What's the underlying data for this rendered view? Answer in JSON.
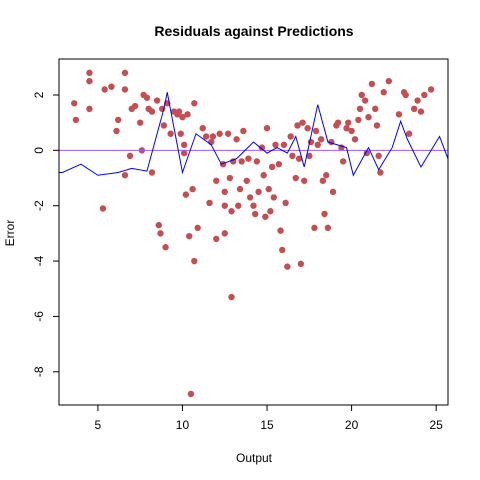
{
  "chart_data": {
    "type": "scatter",
    "title": "Residuals against Predictions",
    "xlabel": "Output",
    "ylabel": "Error",
    "xlim": [
      2.7,
      25.7
    ],
    "ylim": [
      -9.2,
      3.3
    ],
    "xticks": [
      5,
      10,
      15,
      20,
      25
    ],
    "yticks": [
      -8,
      -6,
      -4,
      -2,
      0,
      2
    ],
    "grid": false,
    "legend": "none",
    "colors": {
      "points": "#c44e52",
      "line": "#0000ff",
      "reference": "#9b59ff",
      "axes": "#000000"
    },
    "reference_line": {
      "y": 0
    },
    "series": [
      {
        "type": "scatter",
        "points": [
          [
            3.6,
            1.7
          ],
          [
            3.7,
            1.1
          ],
          [
            4.5,
            2.8
          ],
          [
            4.5,
            2.5
          ],
          [
            4.5,
            1.5
          ],
          [
            5.3,
            -2.1
          ],
          [
            5.4,
            2.2
          ],
          [
            5.8,
            2.3
          ],
          [
            6.1,
            0.7
          ],
          [
            6.2,
            1.1
          ],
          [
            6.6,
            2.8
          ],
          [
            6.6,
            2.2
          ],
          [
            6.6,
            -0.9
          ],
          [
            6.9,
            -0.2
          ],
          [
            7.0,
            1.5
          ],
          [
            7.2,
            1.6
          ],
          [
            7.5,
            1.0
          ],
          [
            7.6,
            0.0
          ],
          [
            7.7,
            2.0
          ],
          [
            7.9,
            1.9
          ],
          [
            8.0,
            1.5
          ],
          [
            8.2,
            1.4
          ],
          [
            8.2,
            -0.8
          ],
          [
            8.5,
            1.8
          ],
          [
            8.6,
            -2.7
          ],
          [
            8.7,
            -3.0
          ],
          [
            8.8,
            1.5
          ],
          [
            8.9,
            0.9
          ],
          [
            9.0,
            -3.5
          ],
          [
            9.1,
            1.7
          ],
          [
            9.3,
            0.6
          ],
          [
            9.5,
            1.4
          ],
          [
            9.7,
            1.3
          ],
          [
            9.8,
            1.4
          ],
          [
            9.9,
            0.6
          ],
          [
            10.0,
            1.2
          ],
          [
            10.1,
            0.2
          ],
          [
            10.1,
            -0.1
          ],
          [
            10.2,
            -1.6
          ],
          [
            10.3,
            1.3
          ],
          [
            10.4,
            -3.1
          ],
          [
            10.5,
            -8.8
          ],
          [
            10.6,
            -1.4
          ],
          [
            10.7,
            -4.0
          ],
          [
            10.7,
            1.7
          ],
          [
            10.9,
            -2.8
          ],
          [
            11.2,
            0.8
          ],
          [
            11.4,
            0.5
          ],
          [
            11.6,
            -1.9
          ],
          [
            11.7,
            0.3
          ],
          [
            11.8,
            0.5
          ],
          [
            12.0,
            -1.1
          ],
          [
            12.0,
            -3.2
          ],
          [
            12.2,
            0.6
          ],
          [
            12.4,
            -0.5
          ],
          [
            12.5,
            -1.5
          ],
          [
            12.5,
            -2.0
          ],
          [
            12.5,
            -3.0
          ],
          [
            12.7,
            0.6
          ],
          [
            12.8,
            -1.0
          ],
          [
            12.9,
            -2.2
          ],
          [
            12.9,
            -5.3
          ],
          [
            13.0,
            -0.4
          ],
          [
            13.2,
            0.4
          ],
          [
            13.3,
            -2.0
          ],
          [
            13.4,
            -1.4
          ],
          [
            13.5,
            -0.4
          ],
          [
            13.6,
            0.7
          ],
          [
            13.8,
            -1.1
          ],
          [
            13.9,
            -0.3
          ],
          [
            14.0,
            -1.7
          ],
          [
            14.2,
            -2.0
          ],
          [
            14.3,
            -2.3
          ],
          [
            14.4,
            -0.4
          ],
          [
            14.5,
            -1.5
          ],
          [
            14.7,
            0.1
          ],
          [
            14.8,
            -0.9
          ],
          [
            14.9,
            -2.4
          ],
          [
            15.0,
            0.8
          ],
          [
            15.1,
            -1.4
          ],
          [
            15.2,
            -2.2
          ],
          [
            15.3,
            -0.6
          ],
          [
            15.4,
            -1.7
          ],
          [
            15.5,
            0.2
          ],
          [
            15.7,
            -0.5
          ],
          [
            15.8,
            -2.9
          ],
          [
            15.9,
            -3.6
          ],
          [
            16.0,
            0.2
          ],
          [
            16.1,
            -1.9
          ],
          [
            16.2,
            -4.2
          ],
          [
            16.4,
            0.5
          ],
          [
            16.5,
            -0.2
          ],
          [
            16.7,
            -1.0
          ],
          [
            16.8,
            0.9
          ],
          [
            16.9,
            -0.3
          ],
          [
            17.0,
            -4.1
          ],
          [
            17.1,
            1.0
          ],
          [
            17.2,
            -1.1
          ],
          [
            17.4,
            0.8
          ],
          [
            17.5,
            -0.2
          ],
          [
            17.6,
            0.3
          ],
          [
            17.8,
            -2.8
          ],
          [
            17.9,
            0.7
          ],
          [
            18.0,
            0.2
          ],
          [
            18.2,
            0.4
          ],
          [
            18.3,
            -1.1
          ],
          [
            18.4,
            -2.3
          ],
          [
            18.5,
            -0.9
          ],
          [
            18.6,
            -2.8
          ],
          [
            18.8,
            0.3
          ],
          [
            18.9,
            -1.5
          ],
          [
            19.1,
            0.9
          ],
          [
            19.2,
            1.0
          ],
          [
            19.4,
            0.1
          ],
          [
            19.5,
            -0.4
          ],
          [
            19.7,
            0.8
          ],
          [
            19.8,
            1.0
          ],
          [
            20.0,
            0.7
          ],
          [
            20.2,
            0.4
          ],
          [
            20.4,
            1.1
          ],
          [
            20.5,
            1.5
          ],
          [
            20.6,
            2.0
          ],
          [
            20.8,
            1.8
          ],
          [
            20.9,
            -0.1
          ],
          [
            21.0,
            1.2
          ],
          [
            21.2,
            2.4
          ],
          [
            21.4,
            1.5
          ],
          [
            21.5,
            0.9
          ],
          [
            21.6,
            -0.2
          ],
          [
            21.7,
            -0.8
          ],
          [
            21.9,
            2.1
          ],
          [
            22.2,
            2.5
          ],
          [
            22.8,
            1.3
          ],
          [
            23.1,
            2.1
          ],
          [
            23.2,
            2.0
          ],
          [
            23.4,
            0.6
          ],
          [
            23.7,
            1.5
          ],
          [
            23.9,
            1.8
          ],
          [
            24.1,
            1.4
          ],
          [
            24.3,
            2.0
          ],
          [
            24.7,
            2.2
          ]
        ]
      },
      {
        "type": "line",
        "points": [
          [
            2.7,
            -0.8
          ],
          [
            2.9,
            -0.8
          ],
          [
            4.0,
            -0.5
          ],
          [
            5.0,
            -0.9
          ],
          [
            6.2,
            -0.8
          ],
          [
            7.0,
            -0.65
          ],
          [
            7.9,
            -0.75
          ],
          [
            8.9,
            1.5
          ],
          [
            9.1,
            2.1
          ],
          [
            10.0,
            -0.8
          ],
          [
            10.8,
            0.6
          ],
          [
            11.7,
            0.2
          ],
          [
            12.3,
            -0.5
          ],
          [
            13.2,
            -0.3
          ],
          [
            14.2,
            0.3
          ],
          [
            15.0,
            -0.1
          ],
          [
            15.6,
            0.1
          ],
          [
            16.2,
            -0.1
          ],
          [
            16.7,
            0.5
          ],
          [
            17.2,
            -0.6
          ],
          [
            18.0,
            1.65
          ],
          [
            18.6,
            0.3
          ],
          [
            19.7,
            0.1
          ],
          [
            20.1,
            -0.9
          ],
          [
            21.0,
            0.1
          ],
          [
            21.6,
            -0.7
          ],
          [
            22.4,
            0.1
          ],
          [
            22.9,
            1.05
          ],
          [
            23.3,
            0.4
          ],
          [
            24.1,
            -0.6
          ],
          [
            25.2,
            0.5
          ],
          [
            25.7,
            -0.3
          ]
        ]
      }
    ]
  }
}
